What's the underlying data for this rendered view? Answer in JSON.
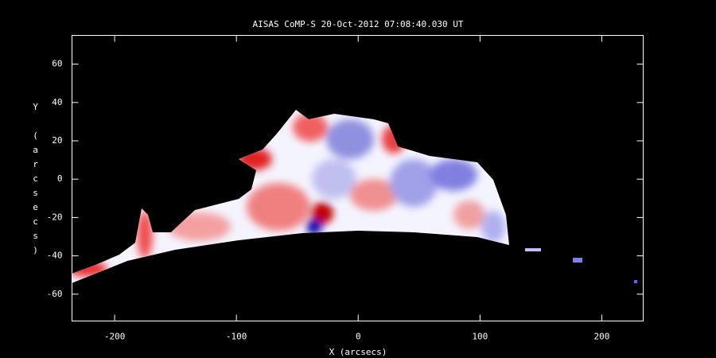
{
  "chart_data": {
    "type": "image",
    "title": "AISAS CoMP-S 20-Oct-2012 07:08:40.030 UT",
    "x_label": "X (arcsecs)",
    "y_label": "Y (arcsecs)",
    "xlim": [
      -235,
      234
    ],
    "ylim": [
      -74,
      75
    ],
    "xticks": [
      -200,
      -100,
      0,
      100,
      200
    ],
    "yticks": [
      -60,
      -40,
      -20,
      0,
      20,
      40,
      60
    ]
  }
}
